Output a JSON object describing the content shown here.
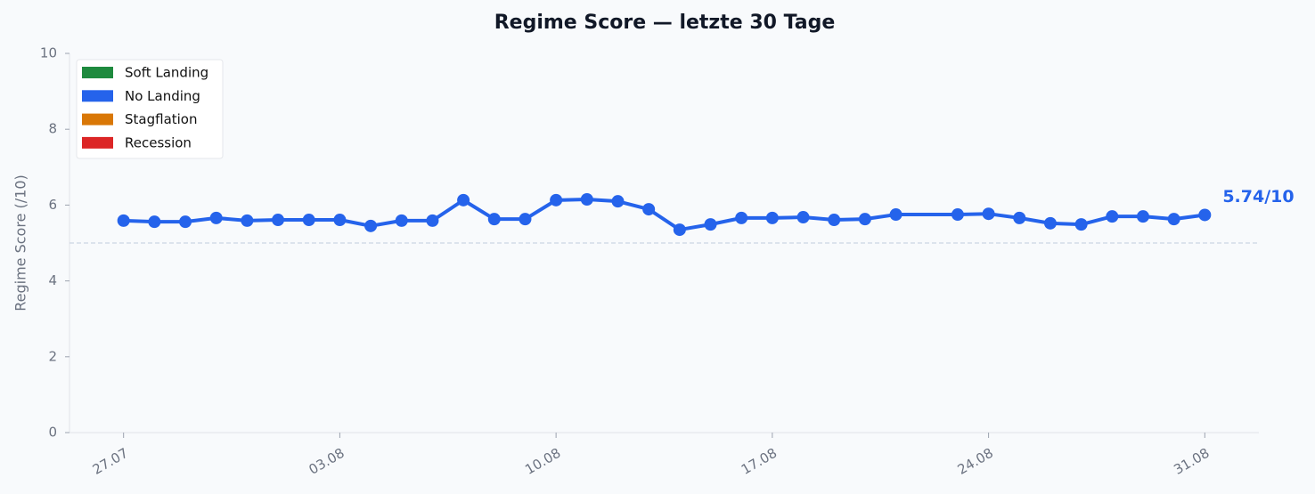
{
  "chart_data": {
    "type": "line",
    "title": "Regime Score — letzte 30 Tage",
    "y_label": "Regime Score (/10)",
    "x": [
      "27.07",
      "28.07",
      "29.07",
      "30.07",
      "31.07",
      "01.08",
      "02.08",
      "03.08",
      "04.08",
      "05.08",
      "06.08",
      "07.08",
      "08.08",
      "09.08",
      "10.08",
      "11.08",
      "12.08",
      "13.08",
      "14.08",
      "15.08",
      "16.08",
      "17.08",
      "18.08",
      "19.08",
      "20.08",
      "21.08",
      "23.08",
      "24.08",
      "25.08",
      "26.08",
      "27.08",
      "28.08",
      "29.08",
      "30.08",
      "31.08"
    ],
    "series": [
      {
        "color": "#2563eb",
        "values": [
          5.59,
          5.56,
          5.56,
          5.66,
          5.59,
          5.61,
          5.61,
          5.61,
          5.45,
          5.59,
          5.59,
          6.13,
          5.63,
          5.63,
          6.13,
          6.15,
          6.1,
          5.89,
          5.35,
          5.49,
          5.66,
          5.66,
          5.68,
          5.61,
          5.63,
          5.75,
          5.75,
          5.77,
          5.66,
          5.52,
          5.49,
          5.7,
          5.7,
          5.63,
          5.74
        ]
      }
    ],
    "annotation": "5.74/10",
    "reference_line": 5,
    "ylim": [
      0,
      10
    ],
    "yticks": [
      0,
      2,
      4,
      6,
      8,
      10
    ],
    "xticks": [
      "27.07",
      "03.08",
      "10.08",
      "17.08",
      "24.08",
      "31.08"
    ],
    "legend": [
      {
        "name": "Soft Landing",
        "color": "#1e8a3e"
      },
      {
        "name": "No Landing",
        "color": "#2563eb"
      },
      {
        "name": "Stagflation",
        "color": "#d97706"
      },
      {
        "name": "Recession",
        "color": "#dc2626"
      }
    ],
    "legend_position": "upper left",
    "grid": false
  }
}
